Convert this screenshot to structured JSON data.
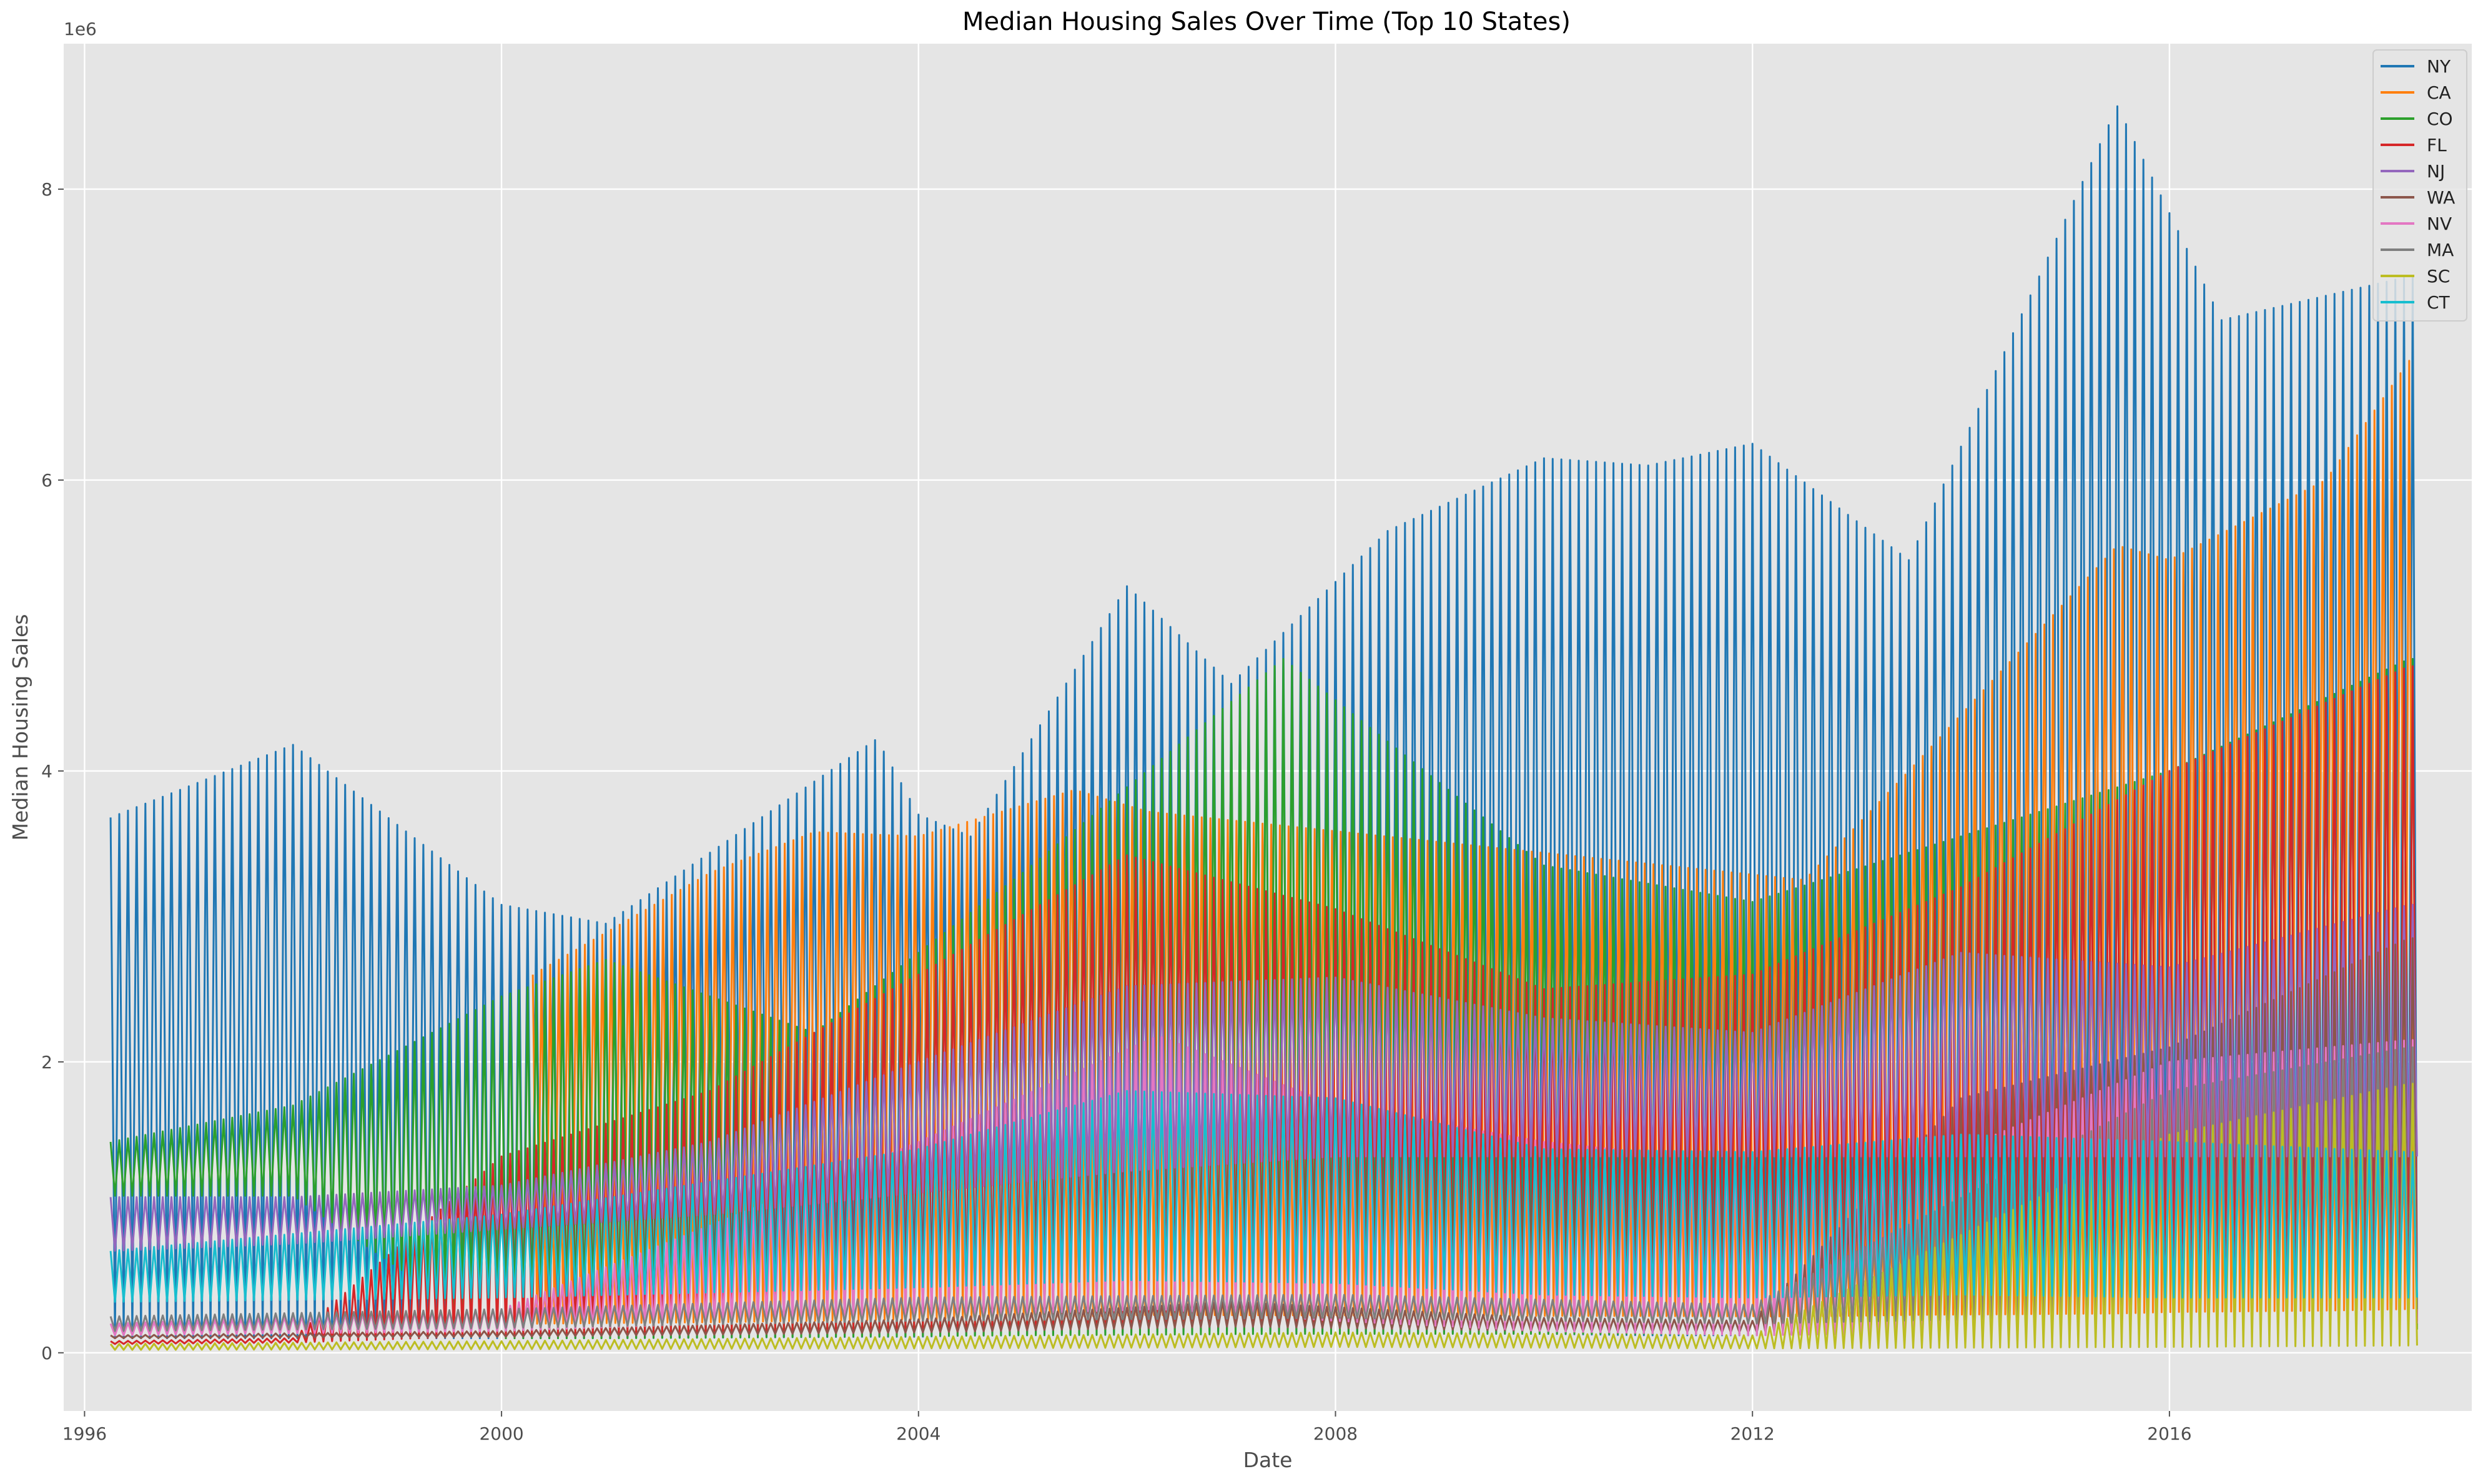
{
  "chart_data": {
    "type": "line",
    "title": "Median Housing Sales Over Time (Top 10 States)",
    "xlabel": "Date",
    "ylabel": "Median Housing Sales",
    "y_offset_label": "1e6",
    "xlim": [
      1995.8,
      2018.9
    ],
    "ylim": [
      -400000,
      9000000
    ],
    "x_ticks": [
      1996,
      2000,
      2004,
      2008,
      2012,
      2016
    ],
    "x_tick_labels": [
      "1996",
      "2000",
      "2004",
      "2008",
      "2012",
      "2016"
    ],
    "y_ticks": [
      0,
      2000000,
      4000000,
      6000000,
      8000000
    ],
    "y_tick_labels": [
      "0",
      "2",
      "4",
      "6",
      "8"
    ],
    "grid": true,
    "legend_position": "top-right",
    "note": "Each series oscillates between a low and high envelope value every month; values below are approximate envelope readings (min/max) at each date.",
    "series": [
      {
        "name": "NY",
        "color": "#1f77b4",
        "x": [
          1996.25,
          1998,
          2000,
          2001,
          2003.6,
          2004,
          2004.5,
          2006,
          2007,
          2008.5,
          2010,
          2011,
          2012,
          2013.5,
          2015.5,
          2016.5,
          2018.3
        ],
        "max": [
          3680000,
          4180000,
          3080000,
          2950000,
          4220000,
          3700000,
          3550000,
          5270000,
          4600000,
          5650000,
          6150000,
          6100000,
          6250000,
          5450000,
          8570000,
          7100000,
          7400000
        ],
        "min": [
          100000,
          100000,
          100000,
          100000,
          110000,
          110000,
          120000,
          140000,
          150000,
          140000,
          130000,
          120000,
          120000,
          140000,
          160000,
          180000,
          200000
        ]
      },
      {
        "name": "CA",
        "color": "#ff7f0e",
        "x": [
          2000.3,
          2002,
          2003,
          2004,
          2005.5,
          2006.2,
          2012.5,
          2013.5,
          2015.5,
          2016,
          2017.5,
          2018.3
        ],
        "max": [
          2600000,
          3300000,
          3580000,
          3550000,
          3870000,
          3720000,
          3250000,
          4000000,
          5550000,
          5450000,
          6000000,
          6820000
        ],
        "min": [
          200000,
          210000,
          220000,
          230000,
          250000,
          260000,
          250000,
          260000,
          270000,
          280000,
          290000,
          300000
        ]
      },
      {
        "name": "CO",
        "color": "#2ca02c",
        "x": [
          1996.25,
          1998,
          2000,
          2001,
          2003,
          2005,
          2007.5,
          2010,
          2012,
          2014,
          2016,
          2018.3
        ],
        "max": [
          1450000,
          1700000,
          2450000,
          2700000,
          2200000,
          3300000,
          4770000,
          3350000,
          3100000,
          3550000,
          4000000,
          4770000
        ],
        "min": [
          1080000,
          1080000,
          100000,
          100000,
          110000,
          120000,
          130000,
          130000,
          130000,
          140000,
          150000,
          160000
        ]
      },
      {
        "name": "FL",
        "color": "#d62728",
        "x": [
          1996.25,
          1998,
          2000,
          2002,
          2004,
          2006,
          2008,
          2010,
          2012,
          2014,
          2016,
          2018.3
        ],
        "max": [
          80000,
          100000,
          1350000,
          1800000,
          2600000,
          3420000,
          3050000,
          2500000,
          2600000,
          3200000,
          4000000,
          4720000
        ],
        "min": [
          60000,
          70000,
          120000,
          140000,
          160000,
          190000,
          200000,
          180000,
          170000,
          180000,
          200000,
          220000
        ]
      },
      {
        "name": "NJ",
        "color": "#9467bd",
        "x": [
          1996.25,
          1998,
          2000,
          2002,
          2004,
          2006,
          2008,
          2010,
          2012,
          2014,
          2016,
          2018.3
        ],
        "max": [
          1070000,
          1070000,
          1150000,
          1450000,
          2000000,
          2520000,
          2580000,
          2300000,
          2200000,
          2750000,
          2650000,
          3080000
        ],
        "min": [
          700000,
          750000,
          850000,
          950000,
          1100000,
          1250000,
          1350000,
          1350000,
          1350000,
          1350000,
          1350000,
          1350000
        ]
      },
      {
        "name": "WA",
        "color": "#8c564b",
        "x": [
          1996.25,
          2000,
          2004,
          2007,
          2010,
          2012,
          2014,
          2016,
          2018.3
        ],
        "max": [
          120000,
          150000,
          230000,
          350000,
          240000,
          220000,
          1750000,
          2100000,
          2850000
        ],
        "min": [
          100000,
          110000,
          140000,
          180000,
          150000,
          140000,
          160000,
          190000,
          220000
        ]
      },
      {
        "name": "NV",
        "color": "#e377c2",
        "x": [
          1996.25,
          2000,
          2004,
          2006.3,
          2008,
          2010,
          2012,
          2014,
          2016,
          2018.3
        ],
        "max": [
          200000,
          300000,
          1450000,
          2180000,
          1700000,
          1450000,
          1300000,
          1400000,
          2000000,
          2150000
        ],
        "min": [
          120000,
          150000,
          250000,
          300000,
          220000,
          150000,
          120000,
          140000,
          180000,
          200000
        ]
      },
      {
        "name": "MA",
        "color": "#7f7f7f",
        "x": [
          1996.25,
          2000,
          2004,
          2008,
          2012,
          2016,
          2018.3
        ],
        "max": [
          250000,
          300000,
          380000,
          400000,
          330000,
          1800000,
          2100000
        ],
        "min": [
          150000,
          170000,
          220000,
          240000,
          200000,
          260000,
          300000
        ]
      },
      {
        "name": "SC",
        "color": "#bcbd22",
        "x": [
          1996.25,
          2000,
          2004,
          2008,
          2012,
          2016,
          2018.3
        ],
        "max": [
          60000,
          80000,
          110000,
          140000,
          120000,
          1500000,
          1850000
        ],
        "min": [
          20000,
          25000,
          30000,
          40000,
          30000,
          40000,
          50000
        ]
      },
      {
        "name": "CT",
        "color": "#17becf",
        "x": [
          1996.25,
          2000,
          2004,
          2006,
          2008,
          2010,
          2012,
          2014,
          2016,
          2018.3
        ],
        "max": [
          700000,
          950000,
          1400000,
          1800000,
          1750000,
          1400000,
          1380000,
          1500000,
          1450000,
          1380000
        ],
        "min": [
          350000,
          380000,
          450000,
          500000,
          480000,
          400000,
          380000,
          400000,
          380000,
          380000
        ]
      }
    ]
  }
}
